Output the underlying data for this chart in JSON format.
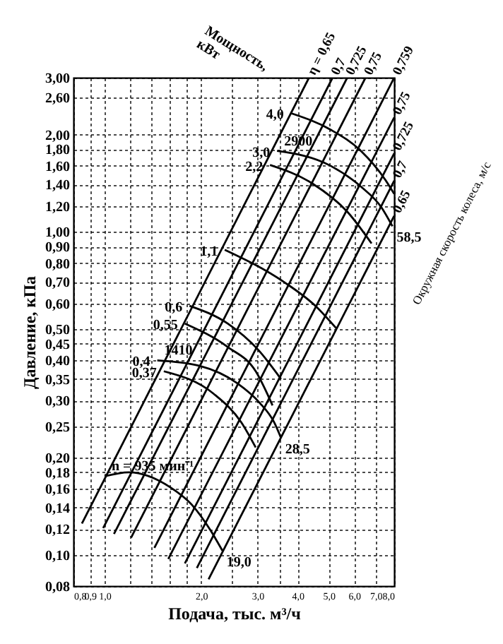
{
  "chart_data": {
    "type": "line",
    "xlabel": "Подача, тыс. м³/ч",
    "ylabel": "Давление, кПа",
    "xlim": [
      0.8,
      8.0
    ],
    "ylim": [
      0.08,
      3.0
    ],
    "log": "xy",
    "grid": true,
    "xticks": [
      {
        "value": 0.8,
        "label": "0,8"
      },
      {
        "value": 0.9,
        "label": "0,9"
      },
      {
        "value": 1.0,
        "label": "1,0"
      },
      {
        "value": 1.2,
        "label": null
      },
      {
        "value": 1.4,
        "label": null
      },
      {
        "value": 1.6,
        "label": null
      },
      {
        "value": 1.8,
        "label": null
      },
      {
        "value": 2.0,
        "label": "2,0"
      },
      {
        "value": 2.5,
        "label": null
      },
      {
        "value": 3.0,
        "label": "3,0"
      },
      {
        "value": 3.5,
        "label": null
      },
      {
        "value": 4.0,
        "label": "4,0"
      },
      {
        "value": 5.0,
        "label": "5,0"
      },
      {
        "value": 6.0,
        "label": "6,0"
      },
      {
        "value": 7.0,
        "label": "7,0"
      },
      {
        "value": 8.0,
        "label": "8,0"
      }
    ],
    "yticks": [
      {
        "value": 3.0,
        "label": "3,00"
      },
      {
        "value": 2.6,
        "label": "2,60"
      },
      {
        "value": 2.0,
        "label": "2,00"
      },
      {
        "value": 1.8,
        "label": "1,80"
      },
      {
        "value": 1.6,
        "label": "1,60"
      },
      {
        "value": 1.4,
        "label": "1,40"
      },
      {
        "value": 1.2,
        "label": "1,20"
      },
      {
        "value": 1.0,
        "label": "1,00"
      },
      {
        "value": 0.9,
        "label": "0,90"
      },
      {
        "value": 0.8,
        "label": "0,80"
      },
      {
        "value": 0.7,
        "label": "0,70"
      },
      {
        "value": 0.6,
        "label": "0,60"
      },
      {
        "value": 0.5,
        "label": "0,50"
      },
      {
        "value": 0.45,
        "label": "0,45"
      },
      {
        "value": 0.4,
        "label": "0,40"
      },
      {
        "value": 0.35,
        "label": "0,35"
      },
      {
        "value": 0.3,
        "label": "0,30"
      },
      {
        "value": 0.25,
        "label": "0,25"
      },
      {
        "value": 0.2,
        "label": "0,20"
      },
      {
        "value": 0.18,
        "label": "0,18"
      },
      {
        "value": 0.16,
        "label": "0,16"
      },
      {
        "value": 0.14,
        "label": "0,14"
      },
      {
        "value": 0.12,
        "label": "0,12"
      },
      {
        "value": 0.1,
        "label": "0,10"
      },
      {
        "value": 0.08,
        "label": "0,08"
      }
    ],
    "series": [
      {
        "color": "#000000",
        "x": [
          3.81,
          5.07,
          6.3,
          7.5,
          8.0
        ],
        "values": [
          2.33,
          2.07,
          1.78,
          1.45,
          1.31
        ]
      },
      {
        "name": "2900",
        "color": "#000000",
        "x": [
          3.45,
          5.07,
          6.3,
          7.3,
          7.9
        ],
        "values": [
          1.78,
          1.6,
          1.38,
          1.19,
          1.04
        ]
      },
      {
        "color": "#000000",
        "x": [
          3.28,
          4.45,
          5.73,
          6.8
        ],
        "values": [
          1.61,
          1.41,
          1.15,
          0.92
        ]
      },
      {
        "color": "#000000",
        "x": [
          2.37,
          3.62,
          4.54,
          5.3
        ],
        "values": [
          0.88,
          0.7,
          0.59,
          0.5
        ]
      },
      {
        "color": "#000000",
        "x": [
          1.84,
          2.42,
          3.02,
          3.55
        ],
        "values": [
          0.59,
          0.52,
          0.43,
          0.35
        ]
      },
      {
        "color": "#000000",
        "x": [
          1.78,
          2.42,
          2.96,
          3.34
        ],
        "values": [
          0.52,
          0.44,
          0.37,
          0.29
        ]
      },
      {
        "name": "1410",
        "color": "#000000",
        "x": [
          1.46,
          1.97,
          2.59,
          3.04,
          3.38,
          3.55
        ],
        "values": [
          0.4,
          0.385,
          0.34,
          0.296,
          0.257,
          0.23
        ]
      },
      {
        "color": "#000000",
        "x": [
          1.53,
          2.19,
          2.67,
          2.96
        ],
        "values": [
          0.37,
          0.315,
          0.257,
          0.215
        ]
      },
      {
        "name": "n = 935 мин⁻¹",
        "color": "#000000",
        "x": [
          1.0,
          1.19,
          1.6,
          1.87,
          2.14,
          2.33
        ],
        "values": [
          0.175,
          0.18,
          0.162,
          0.143,
          0.119,
          0.103
        ]
      },
      {
        "name": "η = 0,65",
        "color": "#000000",
        "x": [
          0.85,
          4.34
        ],
        "values": [
          0.125,
          3.0
        ]
      },
      {
        "name": "0,7",
        "color": "#000000",
        "x": [
          0.99,
          5.14
        ],
        "values": [
          0.121,
          3.0
        ]
      },
      {
        "name": "0,725",
        "color": "#000000",
        "x": [
          1.07,
          5.71
        ],
        "values": [
          0.116,
          3.0
        ]
      },
      {
        "name": "0,75",
        "color": "#000000",
        "x": [
          1.21,
          6.51
        ],
        "values": [
          0.113,
          3.0
        ]
      },
      {
        "name": "0,759",
        "color": "#000000",
        "x": [
          1.43,
          8.0
        ],
        "values": [
          0.105,
          3.0
        ]
      },
      {
        "name": "0,75",
        "color": "#000000",
        "x": [
          1.58,
          8.0
        ],
        "values": [
          0.097,
          2.26
        ]
      },
      {
        "name": "0,725",
        "color": "#000000",
        "x": [
          1.78,
          8.0
        ],
        "values": [
          0.094,
          1.75
        ]
      },
      {
        "name": "0,7",
        "color": "#000000",
        "x": [
          1.94,
          8.0
        ],
        "values": [
          0.091,
          1.44
        ]
      },
      {
        "name": "0,65",
        "color": "#000000",
        "x": [
          2.11,
          8.0
        ],
        "values": [
          0.084,
          1.12
        ]
      }
    ],
    "annotations": [
      "Мощность, кВт",
      "Окружная скорость колеса, м/с",
      {
        "text": "4,0",
        "x": 3.81,
        "y": 2.33
      },
      {
        "text": "3,0",
        "x": 3.45,
        "y": 1.78
      },
      {
        "text": "2,2",
        "x": 3.28,
        "y": 1.61
      },
      {
        "text": "1,1",
        "x": 2.37,
        "y": 0.88
      },
      {
        "text": "0,6",
        "x": 1.84,
        "y": 0.59
      },
      {
        "text": "0,55",
        "x": 1.78,
        "y": 0.52
      },
      {
        "text": "0,4",
        "x": 1.46,
        "y": 0.4
      },
      {
        "text": "0,37",
        "x": 1.53,
        "y": 0.37
      },
      {
        "text": "58,5",
        "x": 7.9,
        "y": 1.04
      },
      {
        "text": "28,5",
        "x": 3.55,
        "y": 0.23
      },
      {
        "text": "19,0",
        "x": 2.33,
        "y": 0.103
      }
    ]
  }
}
